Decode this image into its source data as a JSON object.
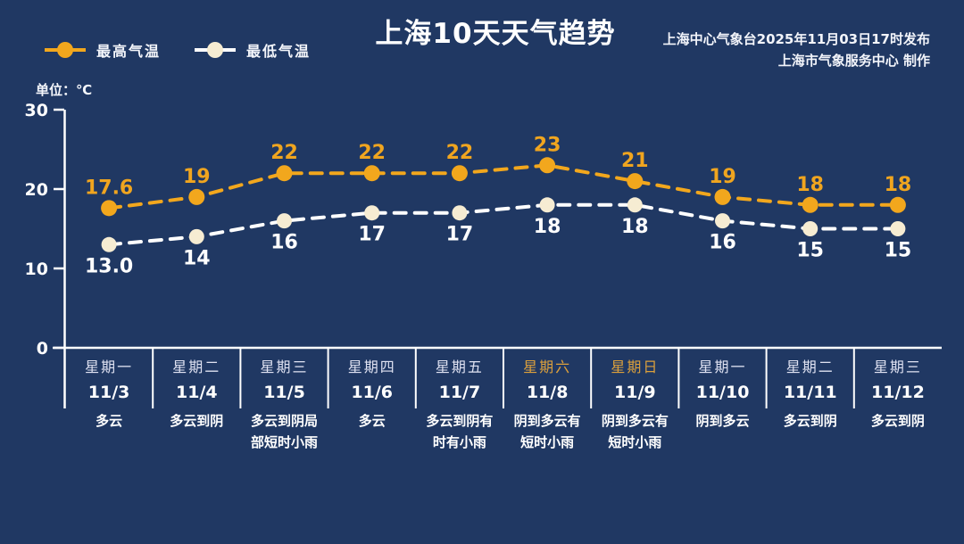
{
  "header": {
    "title": "上海10天天气趋势",
    "source_line1": "上海中心气象台2025年11月03日17时发布",
    "source_line2": "上海市气象服务中心  制作",
    "unit_label": "单位：℃"
  },
  "colors": {
    "background": "#203863",
    "axis": "#ffffff",
    "high_series": "#f2a71d",
    "high_label": "#f0a51f",
    "low_line": "#ffffff",
    "low_marker": "#f6ecd2",
    "low_label": "#ffffff",
    "tick_label": "#ffffff",
    "weekday_text": "#dfe2f2",
    "weekend_text": "#dca03c"
  },
  "chart_data": {
    "type": "line",
    "title": "上海10天天气趋势",
    "ylabel": "单位：℃",
    "ylim": [
      0,
      30
    ],
    "yticks": [
      0,
      10,
      20,
      30
    ],
    "grid": false,
    "legend_position": "top-left",
    "categories": [
      "11/3",
      "11/4",
      "11/5",
      "11/6",
      "11/7",
      "11/8",
      "11/9",
      "11/10",
      "11/11",
      "11/12"
    ],
    "series": [
      {
        "name": "最高气温",
        "values": [
          17.6,
          19,
          22,
          22,
          22,
          23,
          21,
          19,
          18,
          18
        ],
        "labels": [
          "17.6",
          "19",
          "22",
          "22",
          "22",
          "23",
          "21",
          "19",
          "18",
          "18"
        ],
        "line_color": "#f2a71d",
        "marker_color": "#f2a71d",
        "label_color": "#f0a51f",
        "label_side": "above"
      },
      {
        "name": "最低气温",
        "values": [
          13.0,
          14,
          16,
          17,
          17,
          18,
          18,
          16,
          15,
          15
        ],
        "labels": [
          "13.0",
          "14",
          "16",
          "17",
          "17",
          "18",
          "18",
          "16",
          "15",
          "15"
        ],
        "line_color": "#ffffff",
        "marker_color": "#f6ecd2",
        "label_color": "#ffffff",
        "label_side": "below"
      }
    ]
  },
  "days": [
    {
      "weekday": "星期一",
      "date": "11/3",
      "weather": "多云",
      "is_weekend": false
    },
    {
      "weekday": "星期二",
      "date": "11/4",
      "weather": "多云到阴",
      "is_weekend": false
    },
    {
      "weekday": "星期三",
      "date": "11/5",
      "weather": "多云到阴局部短时小雨",
      "is_weekend": false
    },
    {
      "weekday": "星期四",
      "date": "11/6",
      "weather": "多云",
      "is_weekend": false
    },
    {
      "weekday": "星期五",
      "date": "11/7",
      "weather": "多云到阴有时有小雨",
      "is_weekend": false
    },
    {
      "weekday": "星期六",
      "date": "11/8",
      "weather": "阴到多云有短时小雨",
      "is_weendend_typo_guard": null,
      "is_weekend": true
    },
    {
      "weekday": "星期日",
      "date": "11/9",
      "weather": "阴到多云有短时小雨",
      "is_weekend": true
    },
    {
      "weekday": "星期一",
      "date": "11/10",
      "weather": "阴到多云",
      "is_weekend": false
    },
    {
      "weekday": "星期二",
      "date": "11/11",
      "weather": "多云到阴",
      "is_weekend": false
    },
    {
      "weekday": "星期三",
      "date": "11/12",
      "weather": "多云到阴",
      "is_weekend": false
    }
  ]
}
